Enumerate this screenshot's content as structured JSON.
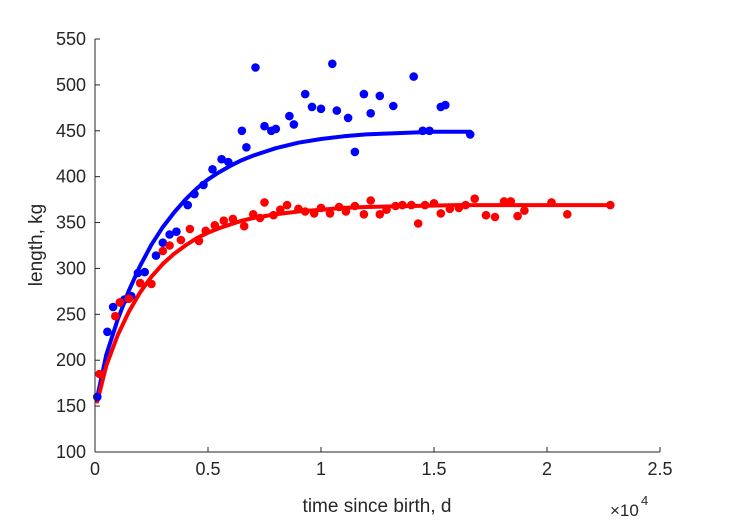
{
  "chart_data": {
    "type": "scatter",
    "title": "",
    "xlabel": "time since birth, d",
    "ylabel": "length, kg",
    "xlim": [
      0,
      25000
    ],
    "ylim": [
      100,
      550
    ],
    "x_multiplier_label": "×10",
    "x_multiplier_exponent": "4",
    "x_tick_values": [
      0,
      5000,
      10000,
      15000,
      20000,
      25000
    ],
    "x_tick_labels": [
      "0",
      "0.5",
      "1",
      "1.5",
      "2",
      "2.5"
    ],
    "y_tick_values": [
      100,
      150,
      200,
      250,
      300,
      350,
      400,
      450,
      500,
      550
    ],
    "y_tick_labels": [
      "100",
      "150",
      "200",
      "250",
      "300",
      "350",
      "400",
      "450",
      "500",
      "550"
    ],
    "grid": false,
    "series": [
      {
        "color": "#0000ff",
        "points": [
          [
            100,
            160
          ],
          [
            550,
            231
          ],
          [
            800,
            258
          ],
          [
            1100,
            263
          ],
          [
            1300,
            266
          ],
          [
            1600,
            270
          ],
          [
            1900,
            295
          ],
          [
            2200,
            296
          ],
          [
            2700,
            314
          ],
          [
            3000,
            328
          ],
          [
            3300,
            337
          ],
          [
            3600,
            340
          ],
          [
            4100,
            369
          ],
          [
            4400,
            381
          ],
          [
            4800,
            391
          ],
          [
            5200,
            408
          ],
          [
            5600,
            419
          ],
          [
            5900,
            416
          ],
          [
            6500,
            450
          ],
          [
            6700,
            432
          ],
          [
            7100,
            519
          ],
          [
            7500,
            455
          ],
          [
            7800,
            450
          ],
          [
            8000,
            452
          ],
          [
            8600,
            466
          ],
          [
            8800,
            457
          ],
          [
            9300,
            490
          ],
          [
            9600,
            476
          ],
          [
            10000,
            474
          ],
          [
            10500,
            523
          ],
          [
            10700,
            472
          ],
          [
            11200,
            464
          ],
          [
            11500,
            427
          ],
          [
            11900,
            490
          ],
          [
            12200,
            469
          ],
          [
            12600,
            488
          ],
          [
            13200,
            477
          ],
          [
            14100,
            509
          ],
          [
            14500,
            450
          ],
          [
            14800,
            450
          ],
          [
            15300,
            476
          ],
          [
            15500,
            478
          ],
          [
            16600,
            446
          ]
        ],
        "fit": [
          [
            100,
            160
          ],
          [
            500,
            206
          ],
          [
            1000,
            244
          ],
          [
            1500,
            276
          ],
          [
            2000,
            303
          ],
          [
            2500,
            326
          ],
          [
            3000,
            345
          ],
          [
            3500,
            361
          ],
          [
            4000,
            375
          ],
          [
            4500,
            387
          ],
          [
            5000,
            397
          ],
          [
            5500,
            405
          ],
          [
            6000,
            412
          ],
          [
            6500,
            418
          ],
          [
            7000,
            423
          ],
          [
            7500,
            427
          ],
          [
            8000,
            431
          ],
          [
            9000,
            437
          ],
          [
            10000,
            441
          ],
          [
            11000,
            444
          ],
          [
            12000,
            446
          ],
          [
            13000,
            447
          ],
          [
            14000,
            448
          ],
          [
            15000,
            449
          ],
          [
            16000,
            449
          ],
          [
            16600,
            449
          ]
        ]
      },
      {
        "color": "#ff0000",
        "points": [
          [
            200,
            185
          ],
          [
            900,
            248
          ],
          [
            1100,
            263
          ],
          [
            1500,
            267
          ],
          [
            2000,
            284
          ],
          [
            2500,
            283
          ],
          [
            3000,
            319
          ],
          [
            3300,
            325
          ],
          [
            3800,
            331
          ],
          [
            4200,
            343
          ],
          [
            4600,
            330
          ],
          [
            4900,
            341
          ],
          [
            5300,
            347
          ],
          [
            5700,
            352
          ],
          [
            6100,
            354
          ],
          [
            6600,
            346
          ],
          [
            7000,
            359
          ],
          [
            7300,
            355
          ],
          [
            7500,
            372
          ],
          [
            7900,
            358
          ],
          [
            8200,
            364
          ],
          [
            8500,
            369
          ],
          [
            9000,
            365
          ],
          [
            9300,
            362
          ],
          [
            9700,
            360
          ],
          [
            10000,
            366
          ],
          [
            10400,
            360
          ],
          [
            10800,
            367
          ],
          [
            11100,
            362
          ],
          [
            11500,
            368
          ],
          [
            11900,
            359
          ],
          [
            12200,
            374
          ],
          [
            12600,
            359
          ],
          [
            12900,
            364
          ],
          [
            13300,
            368
          ],
          [
            13600,
            369
          ],
          [
            14000,
            369
          ],
          [
            14300,
            349
          ],
          [
            14600,
            369
          ],
          [
            15000,
            371
          ],
          [
            15300,
            360
          ],
          [
            15700,
            365
          ],
          [
            16100,
            366
          ],
          [
            16400,
            369
          ],
          [
            16800,
            376
          ],
          [
            17300,
            358
          ],
          [
            17700,
            356
          ],
          [
            18100,
            373
          ],
          [
            18400,
            373
          ],
          [
            18700,
            357
          ],
          [
            19000,
            363
          ],
          [
            20200,
            372
          ],
          [
            20900,
            359
          ],
          [
            22800,
            369
          ]
        ],
        "fit": [
          [
            100,
            155
          ],
          [
            500,
            194
          ],
          [
            1000,
            227
          ],
          [
            1500,
            253
          ],
          [
            2000,
            274
          ],
          [
            2500,
            291
          ],
          [
            3000,
            305
          ],
          [
            3500,
            316
          ],
          [
            4000,
            325
          ],
          [
            4500,
            333
          ],
          [
            5000,
            339
          ],
          [
            5500,
            344
          ],
          [
            6000,
            348
          ],
          [
            6500,
            352
          ],
          [
            7000,
            355
          ],
          [
            7500,
            357
          ],
          [
            8000,
            359
          ],
          [
            9000,
            362
          ],
          [
            10000,
            364
          ],
          [
            11000,
            366
          ],
          [
            12000,
            367
          ],
          [
            14000,
            368
          ],
          [
            16000,
            369
          ],
          [
            18000,
            369
          ],
          [
            20000,
            369
          ],
          [
            22800,
            369
          ]
        ]
      }
    ]
  }
}
